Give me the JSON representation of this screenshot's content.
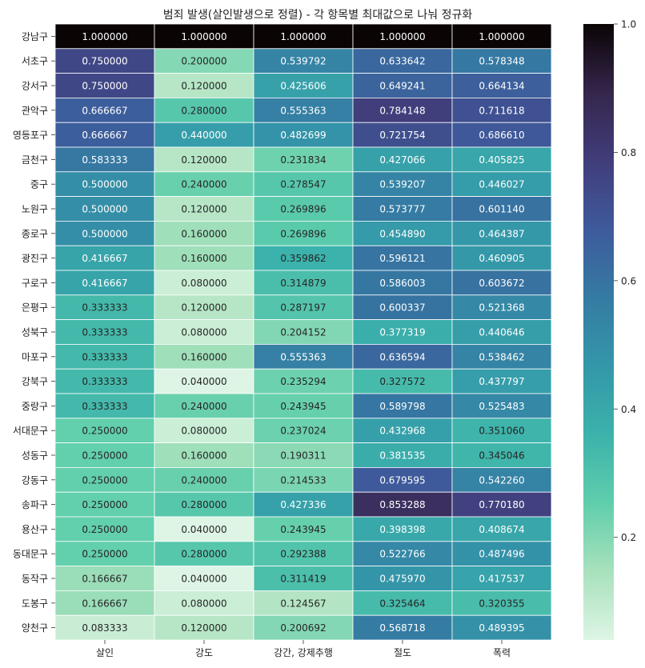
{
  "chart_data": {
    "type": "heatmap",
    "title": "범죄 발생(살인발생으로 정렬) - 각 항목별 최대값으로 나눠 정규화",
    "columns": [
      "살인",
      "강도",
      "강간, 강제추행",
      "절도",
      "폭력"
    ],
    "rows": [
      "강남구",
      "서초구",
      "강서구",
      "관악구",
      "영등포구",
      "금천구",
      "중구",
      "노원구",
      "종로구",
      "광진구",
      "구로구",
      "은평구",
      "성북구",
      "마포구",
      "강북구",
      "중랑구",
      "서대문구",
      "성동구",
      "강동구",
      "송파구",
      "용산구",
      "동대문구",
      "동작구",
      "도봉구",
      "양천구"
    ],
    "values": [
      [
        1.0,
        1.0,
        1.0,
        1.0,
        1.0
      ],
      [
        0.75,
        0.2,
        0.539792,
        0.633642,
        0.578348
      ],
      [
        0.75,
        0.12,
        0.425606,
        0.649241,
        0.664134
      ],
      [
        0.666667,
        0.28,
        0.555363,
        0.784148,
        0.711618
      ],
      [
        0.666667,
        0.44,
        0.482699,
        0.721754,
        0.68661
      ],
      [
        0.583333,
        0.12,
        0.231834,
        0.427066,
        0.405825
      ],
      [
        0.5,
        0.24,
        0.278547,
        0.539207,
        0.446027
      ],
      [
        0.5,
        0.12,
        0.269896,
        0.573777,
        0.60114
      ],
      [
        0.5,
        0.16,
        0.269896,
        0.45489,
        0.464387
      ],
      [
        0.416667,
        0.16,
        0.359862,
        0.596121,
        0.460905
      ],
      [
        0.416667,
        0.08,
        0.314879,
        0.586003,
        0.603672
      ],
      [
        0.333333,
        0.12,
        0.287197,
        0.600337,
        0.521368
      ],
      [
        0.333333,
        0.08,
        0.204152,
        0.377319,
        0.440646
      ],
      [
        0.333333,
        0.16,
        0.555363,
        0.636594,
        0.538462
      ],
      [
        0.333333,
        0.04,
        0.235294,
        0.327572,
        0.437797
      ],
      [
        0.333333,
        0.24,
        0.243945,
        0.589798,
        0.525483
      ],
      [
        0.25,
        0.08,
        0.237024,
        0.432968,
        0.35106
      ],
      [
        0.25,
        0.16,
        0.190311,
        0.381535,
        0.345046
      ],
      [
        0.25,
        0.24,
        0.214533,
        0.679595,
        0.54226
      ],
      [
        0.25,
        0.28,
        0.427336,
        0.853288,
        0.77018
      ],
      [
        0.25,
        0.04,
        0.243945,
        0.398398,
        0.408674
      ],
      [
        0.25,
        0.28,
        0.292388,
        0.522766,
        0.487496
      ],
      [
        0.166667,
        0.04,
        0.311419,
        0.47597,
        0.417537
      ],
      [
        0.166667,
        0.08,
        0.124567,
        0.325464,
        0.320355
      ],
      [
        0.083333,
        0.12,
        0.200692,
        0.568718,
        0.489395
      ]
    ],
    "value_labels": [
      [
        "1.000000",
        "1.000000",
        "1.000000",
        "1.000000",
        "1.000000"
      ],
      [
        "0.750000",
        "0.200000",
        "0.539792",
        "0.633642",
        "0.578348"
      ],
      [
        "0.750000",
        "0.120000",
        "0.425606",
        "0.649241",
        "0.664134"
      ],
      [
        "0.666667",
        "0.280000",
        "0.555363",
        "0.784148",
        "0.711618"
      ],
      [
        "0.666667",
        "0.440000",
        "0.482699",
        "0.721754",
        "0.686610"
      ],
      [
        "0.583333",
        "0.120000",
        "0.231834",
        "0.427066",
        "0.405825"
      ],
      [
        "0.500000",
        "0.240000",
        "0.278547",
        "0.539207",
        "0.446027"
      ],
      [
        "0.500000",
        "0.120000",
        "0.269896",
        "0.573777",
        "0.601140"
      ],
      [
        "0.500000",
        "0.160000",
        "0.269896",
        "0.454890",
        "0.464387"
      ],
      [
        "0.416667",
        "0.160000",
        "0.359862",
        "0.596121",
        "0.460905"
      ],
      [
        "0.416667",
        "0.080000",
        "0.314879",
        "0.586003",
        "0.603672"
      ],
      [
        "0.333333",
        "0.120000",
        "0.287197",
        "0.600337",
        "0.521368"
      ],
      [
        "0.333333",
        "0.080000",
        "0.204152",
        "0.377319",
        "0.440646"
      ],
      [
        "0.333333",
        "0.160000",
        "0.555363",
        "0.636594",
        "0.538462"
      ],
      [
        "0.333333",
        "0.040000",
        "0.235294",
        "0.327572",
        "0.437797"
      ],
      [
        "0.333333",
        "0.240000",
        "0.243945",
        "0.589798",
        "0.525483"
      ],
      [
        "0.250000",
        "0.080000",
        "0.237024",
        "0.432968",
        "0.351060"
      ],
      [
        "0.250000",
        "0.160000",
        "0.190311",
        "0.381535",
        "0.345046"
      ],
      [
        "0.250000",
        "0.240000",
        "0.214533",
        "0.679595",
        "0.542260"
      ],
      [
        "0.250000",
        "0.280000",
        "0.427336",
        "0.853288",
        "0.770180"
      ],
      [
        "0.250000",
        "0.040000",
        "0.243945",
        "0.398398",
        "0.408674"
      ],
      [
        "0.250000",
        "0.280000",
        "0.292388",
        "0.522766",
        "0.487496"
      ],
      [
        "0.166667",
        "0.040000",
        "0.311419",
        "0.475970",
        "0.417537"
      ],
      [
        "0.166667",
        "0.080000",
        "0.124567",
        "0.325464",
        "0.320355"
      ],
      [
        "0.083333",
        "0.120000",
        "0.200692",
        "0.568718",
        "0.489395"
      ]
    ],
    "colorbar": {
      "range": [
        0.04,
        1.0
      ],
      "ticks": [
        0.2,
        0.4,
        0.6,
        0.8,
        1.0
      ],
      "tick_labels": [
        "0.2",
        "0.4",
        "0.6",
        "0.8",
        "1.0"
      ],
      "colormap": "mako_r",
      "stops": [
        "#def5e5",
        "#a8e1bc",
        "#60ceac",
        "#3bb2ab",
        "#3497a9",
        "#357ba3",
        "#3e5a9b",
        "#413d7b",
        "#35264c",
        "#0b0405"
      ]
    },
    "grid": false,
    "legend": "colorbar-right"
  }
}
